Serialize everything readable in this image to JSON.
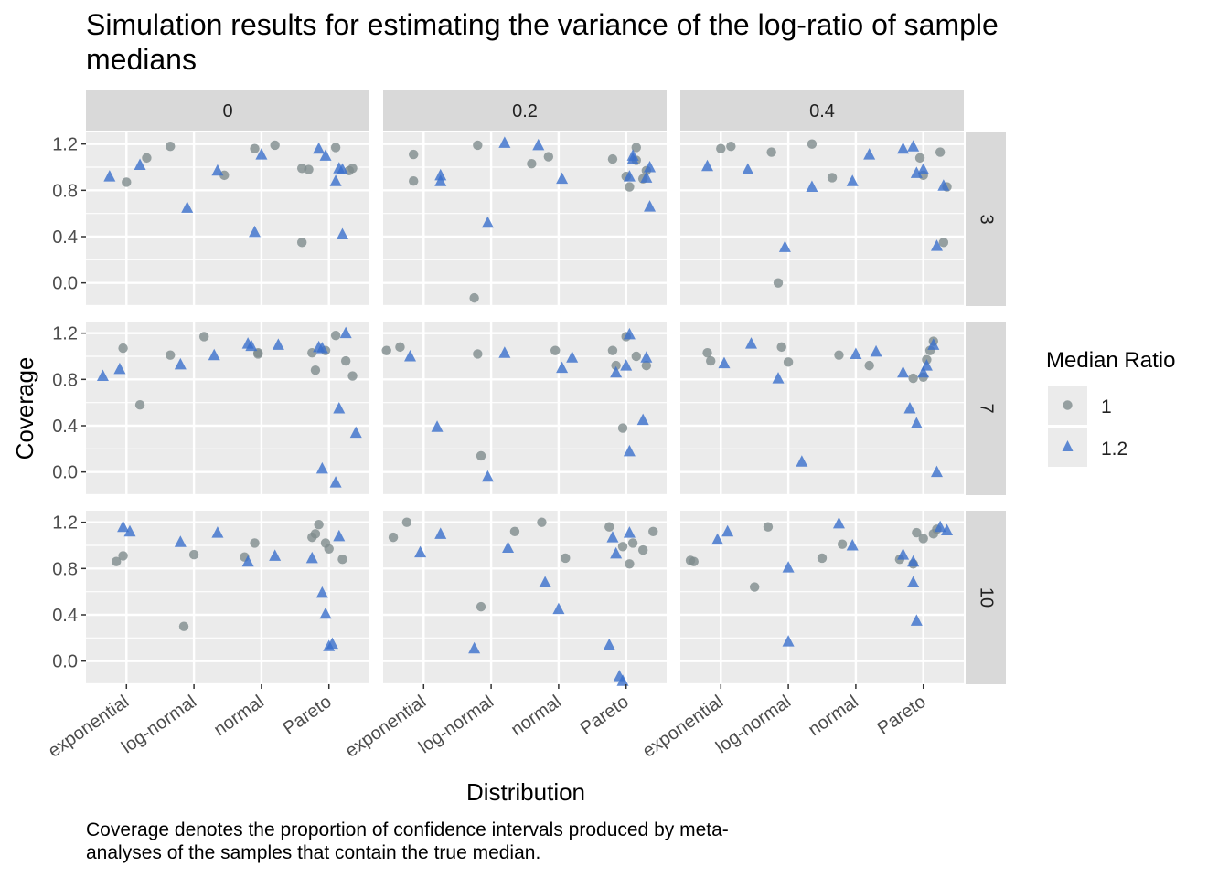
{
  "chart_data": {
    "type": "scatter",
    "title": "Simulation results for estimating the variance of the log-ratio of sample medians",
    "title_lines": [
      "Simulation results for estimating the variance of the log-ratio of sample",
      "medians"
    ],
    "caption_lines": [
      "Coverage denotes the proportion of confidence intervals produced by meta-",
      "analyses of the samples that contain the true median."
    ],
    "xlabel": "Distribution",
    "ylabel": "Coverage",
    "categories": [
      "exponential",
      "log-normal",
      "normal",
      "Pareto"
    ],
    "yticks": [
      "0.0",
      "0.4",
      "0.8",
      "1.2"
    ],
    "ytick_values": [
      0.0,
      0.4,
      0.8,
      1.2
    ],
    "ylim": [
      -0.2,
      1.3
    ],
    "col_facets": [
      "0",
      "0.2",
      "0.4"
    ],
    "row_facets": [
      "3",
      "7",
      "10"
    ],
    "legend": {
      "title": "Median Ratio",
      "placement": "right",
      "entries": [
        {
          "label": "1",
          "shape": "circle",
          "color": "#7f8c8d"
        },
        {
          "label": "1.2",
          "shape": "triangle",
          "color": "#3a6fcc"
        }
      ]
    },
    "colors": {
      "panel_bg": "#ebebeb",
      "strip_bg": "#d9d9d9",
      "grid": "#ffffff",
      "circle": "#7f8c8d",
      "triangle": "#3a6fcc"
    },
    "panels": [
      {
        "col": "0",
        "row": "3",
        "circles": [
          [
            1.0,
            0.87
          ],
          [
            1.3,
            1.08
          ],
          [
            1.65,
            1.18
          ],
          [
            2.45,
            0.93
          ],
          [
            2.9,
            1.16
          ],
          [
            3.2,
            1.19
          ],
          [
            3.6,
            0.35
          ],
          [
            3.7,
            0.98
          ],
          [
            4.1,
            1.17
          ],
          [
            4.3,
            0.97
          ],
          [
            4.35,
            0.99
          ],
          [
            3.6,
            0.99
          ]
        ],
        "triangles": [
          [
            0.75,
            0.92
          ],
          [
            1.2,
            1.02
          ],
          [
            1.9,
            0.65
          ],
          [
            2.35,
            0.97
          ],
          [
            2.9,
            0.44
          ],
          [
            3.0,
            1.11
          ],
          [
            3.85,
            1.16
          ],
          [
            3.95,
            1.1
          ],
          [
            4.1,
            0.88
          ],
          [
            4.15,
            0.99
          ],
          [
            4.2,
            0.42
          ],
          [
            4.2,
            0.98
          ]
        ]
      },
      {
        "col": "0.2",
        "row": "3",
        "circles": [
          [
            0.85,
            1.11
          ],
          [
            0.85,
            0.88
          ],
          [
            1.75,
            -0.13
          ],
          [
            1.8,
            1.19
          ],
          [
            2.6,
            1.03
          ],
          [
            2.85,
            1.09
          ],
          [
            3.8,
            1.07
          ],
          [
            4.0,
            0.92
          ],
          [
            4.05,
            0.83
          ],
          [
            4.15,
            1.17
          ],
          [
            4.25,
            0.9
          ],
          [
            4.3,
            0.97
          ],
          [
            4.15,
            1.06
          ]
        ],
        "triangles": [
          [
            1.25,
            0.93
          ],
          [
            1.25,
            0.88
          ],
          [
            1.95,
            0.52
          ],
          [
            2.2,
            1.21
          ],
          [
            2.7,
            1.19
          ],
          [
            3.05,
            0.9
          ],
          [
            4.05,
            0.92
          ],
          [
            4.1,
            1.1
          ],
          [
            4.1,
            1.07
          ],
          [
            4.3,
            0.91
          ],
          [
            4.35,
            1.0
          ],
          [
            4.35,
            0.66
          ]
        ]
      },
      {
        "col": "0.4",
        "row": "3",
        "circles": [
          [
            1.0,
            1.16
          ],
          [
            1.15,
            1.18
          ],
          [
            1.75,
            1.13
          ],
          [
            1.85,
            0.0
          ],
          [
            2.35,
            1.2
          ],
          [
            2.65,
            0.91
          ],
          [
            3.95,
            1.08
          ],
          [
            4.0,
            0.93
          ],
          [
            4.25,
            1.13
          ],
          [
            4.3,
            0.35
          ],
          [
            4.35,
            0.83
          ]
        ],
        "triangles": [
          [
            0.8,
            1.01
          ],
          [
            1.4,
            0.98
          ],
          [
            1.95,
            0.31
          ],
          [
            2.35,
            0.83
          ],
          [
            2.95,
            0.88
          ],
          [
            3.2,
            1.11
          ],
          [
            3.7,
            1.16
          ],
          [
            3.85,
            1.18
          ],
          [
            3.9,
            0.95
          ],
          [
            4.0,
            0.98
          ],
          [
            4.2,
            0.32
          ],
          [
            4.3,
            0.84
          ]
        ]
      },
      {
        "col": "0",
        "row": "7",
        "circles": [
          [
            0.95,
            1.07
          ],
          [
            1.2,
            0.58
          ],
          [
            1.65,
            1.01
          ],
          [
            2.15,
            1.17
          ],
          [
            2.95,
            1.03
          ],
          [
            2.95,
            1.02
          ],
          [
            3.75,
            1.03
          ],
          [
            3.95,
            1.05
          ],
          [
            3.8,
            0.88
          ],
          [
            4.1,
            1.18
          ],
          [
            4.25,
            0.96
          ],
          [
            4.35,
            0.83
          ]
        ],
        "triangles": [
          [
            0.65,
            0.83
          ],
          [
            0.9,
            0.89
          ],
          [
            1.8,
            0.93
          ],
          [
            2.3,
            1.01
          ],
          [
            2.8,
            1.11
          ],
          [
            2.85,
            1.09
          ],
          [
            3.25,
            1.1
          ],
          [
            3.85,
            1.08
          ],
          [
            3.9,
            1.07
          ],
          [
            3.9,
            0.03
          ],
          [
            4.1,
            -0.09
          ],
          [
            4.15,
            0.55
          ],
          [
            4.25,
            1.2
          ],
          [
            4.4,
            0.34
          ]
        ]
      },
      {
        "col": "0.2",
        "row": "7",
        "circles": [
          [
            0.45,
            1.05
          ],
          [
            0.65,
            1.08
          ],
          [
            1.8,
            1.02
          ],
          [
            1.85,
            0.14
          ],
          [
            2.95,
            1.05
          ],
          [
            3.8,
            1.05
          ],
          [
            3.85,
            0.92
          ],
          [
            3.95,
            0.38
          ],
          [
            4.0,
            1.17
          ],
          [
            4.15,
            1.0
          ],
          [
            4.3,
            0.92
          ]
        ],
        "triangles": [
          [
            0.8,
            1.0
          ],
          [
            1.2,
            0.39
          ],
          [
            1.95,
            -0.04
          ],
          [
            2.2,
            1.03
          ],
          [
            3.05,
            0.9
          ],
          [
            3.2,
            0.99
          ],
          [
            3.85,
            0.86
          ],
          [
            4.0,
            0.92
          ],
          [
            4.05,
            1.19
          ],
          [
            4.05,
            0.18
          ],
          [
            4.25,
            0.45
          ],
          [
            4.3,
            0.99
          ]
        ]
      },
      {
        "col": "0.4",
        "row": "7",
        "circles": [
          [
            0.8,
            1.03
          ],
          [
            0.85,
            0.96
          ],
          [
            1.9,
            1.08
          ],
          [
            2.0,
            0.95
          ],
          [
            2.75,
            1.01
          ],
          [
            3.2,
            0.92
          ],
          [
            3.85,
            0.81
          ],
          [
            4.0,
            0.82
          ],
          [
            4.05,
            0.97
          ],
          [
            4.1,
            1.05
          ],
          [
            4.15,
            1.13
          ]
        ],
        "triangles": [
          [
            1.05,
            0.94
          ],
          [
            1.45,
            1.11
          ],
          [
            1.85,
            0.81
          ],
          [
            2.2,
            0.09
          ],
          [
            3.0,
            1.02
          ],
          [
            3.3,
            1.04
          ],
          [
            3.7,
            0.86
          ],
          [
            3.8,
            0.55
          ],
          [
            3.9,
            0.42
          ],
          [
            4.0,
            0.86
          ],
          [
            4.05,
            0.92
          ],
          [
            4.15,
            1.1
          ],
          [
            4.2,
            0.0
          ]
        ]
      },
      {
        "col": "0",
        "row": "10",
        "circles": [
          [
            0.85,
            0.86
          ],
          [
            0.95,
            0.91
          ],
          [
            1.85,
            0.3
          ],
          [
            2.0,
            0.92
          ],
          [
            2.75,
            0.9
          ],
          [
            2.9,
            1.02
          ],
          [
            3.75,
            1.07
          ],
          [
            3.8,
            1.1
          ],
          [
            3.85,
            1.18
          ],
          [
            3.95,
            1.02
          ],
          [
            4.0,
            0.97
          ],
          [
            4.2,
            0.88
          ]
        ],
        "triangles": [
          [
            0.95,
            1.16
          ],
          [
            1.05,
            1.12
          ],
          [
            1.8,
            1.03
          ],
          [
            2.35,
            1.11
          ],
          [
            2.8,
            0.86
          ],
          [
            3.2,
            0.91
          ],
          [
            3.75,
            0.89
          ],
          [
            3.9,
            0.59
          ],
          [
            3.95,
            0.41
          ],
          [
            4.0,
            0.13
          ],
          [
            4.05,
            0.15
          ],
          [
            4.15,
            1.08
          ]
        ]
      },
      {
        "col": "0.2",
        "row": "10",
        "circles": [
          [
            0.55,
            1.07
          ],
          [
            0.75,
            1.2
          ],
          [
            1.85,
            0.47
          ],
          [
            2.35,
            1.12
          ],
          [
            2.75,
            1.2
          ],
          [
            3.1,
            0.89
          ],
          [
            3.75,
            1.16
          ],
          [
            3.95,
            0.99
          ],
          [
            4.05,
            0.84
          ],
          [
            4.1,
            1.02
          ],
          [
            4.25,
            0.96
          ],
          [
            4.4,
            1.12
          ]
        ],
        "triangles": [
          [
            0.95,
            0.94
          ],
          [
            1.25,
            1.1
          ],
          [
            1.75,
            0.11
          ],
          [
            2.25,
            0.98
          ],
          [
            2.8,
            0.68
          ],
          [
            3.0,
            0.45
          ],
          [
            3.75,
            0.14
          ],
          [
            3.8,
            1.07
          ],
          [
            3.85,
            0.93
          ],
          [
            3.9,
            -0.13
          ],
          [
            3.95,
            -0.17
          ],
          [
            4.05,
            1.11
          ]
        ]
      },
      {
        "col": "0.4",
        "row": "10",
        "circles": [
          [
            0.55,
            0.87
          ],
          [
            0.6,
            0.86
          ],
          [
            1.5,
            0.64
          ],
          [
            1.7,
            1.16
          ],
          [
            2.5,
            0.89
          ],
          [
            2.8,
            1.01
          ],
          [
            3.65,
            0.88
          ],
          [
            3.85,
            0.84
          ],
          [
            3.9,
            1.11
          ],
          [
            4.0,
            1.06
          ],
          [
            4.15,
            1.1
          ],
          [
            4.2,
            1.14
          ]
        ],
        "triangles": [
          [
            0.95,
            1.05
          ],
          [
            1.1,
            1.12
          ],
          [
            2.0,
            0.81
          ],
          [
            2.0,
            0.17
          ],
          [
            2.75,
            1.19
          ],
          [
            2.95,
            1.0
          ],
          [
            3.7,
            0.92
          ],
          [
            3.85,
            0.86
          ],
          [
            3.85,
            0.68
          ],
          [
            3.9,
            0.35
          ],
          [
            4.25,
            1.16
          ],
          [
            4.35,
            1.13
          ]
        ]
      }
    ]
  }
}
